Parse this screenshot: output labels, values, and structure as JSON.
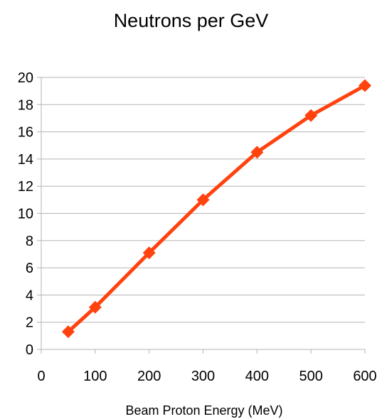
{
  "chart_data": {
    "type": "scatter",
    "title": "Neutrons per GeV",
    "xlabel": "Beam Proton Energy (MeV)",
    "ylabel": "",
    "xlim": [
      0,
      600
    ],
    "ylim": [
      0,
      20
    ],
    "x_ticks": [
      0,
      100,
      200,
      300,
      400,
      500,
      600
    ],
    "y_ticks": [
      0,
      2,
      4,
      6,
      8,
      10,
      12,
      14,
      16,
      18,
      20
    ],
    "grid": "horizontal",
    "legend": "none",
    "series": [
      {
        "x": [
          50,
          100,
          200,
          300,
          400,
          500,
          600
        ],
        "y": [
          1.3,
          3.1,
          7.1,
          11.0,
          14.5,
          17.2,
          19.4
        ],
        "color": "#ff420e",
        "marker": "diamond",
        "line": "solid"
      }
    ]
  }
}
